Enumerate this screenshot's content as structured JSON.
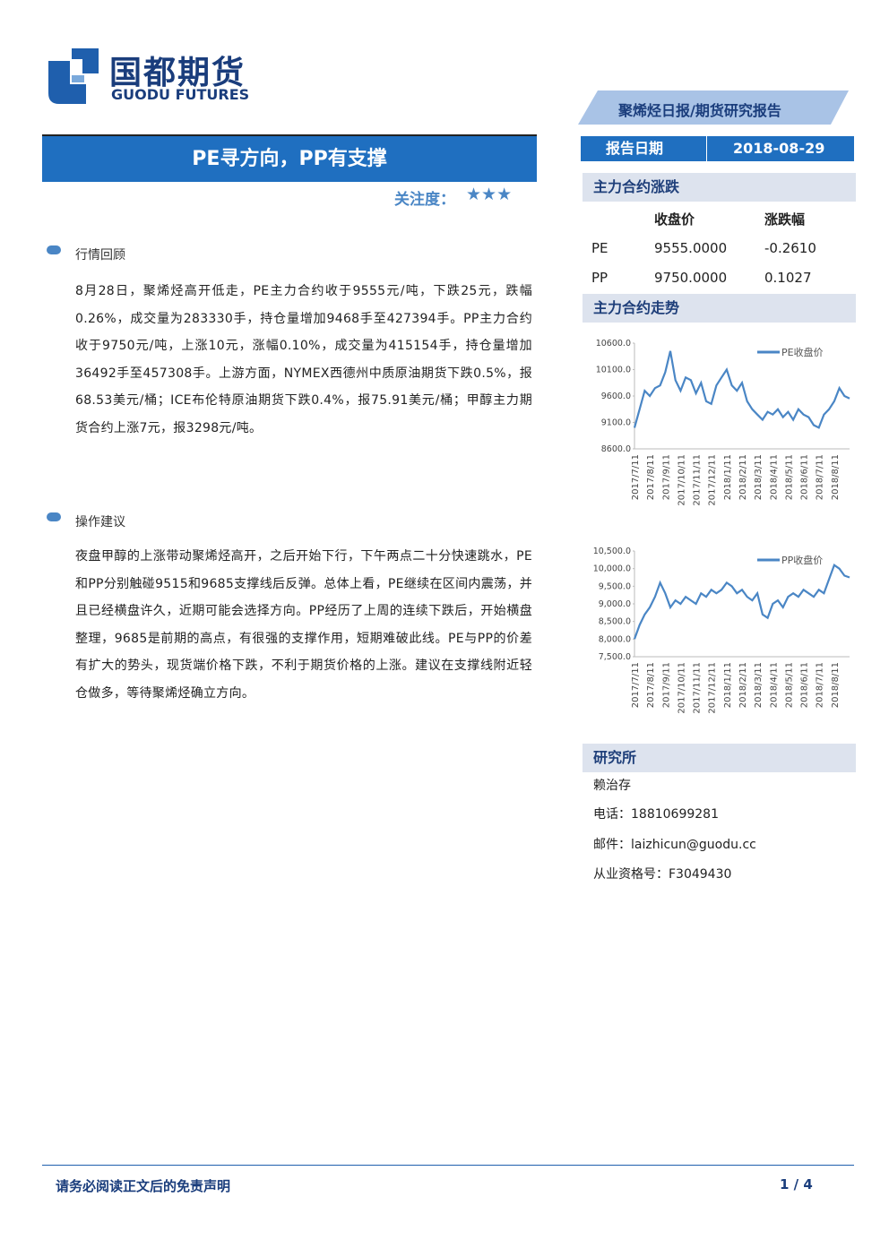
{
  "header": {
    "logo_cn": "国都期货",
    "logo_en": "GUODU FUTURES",
    "report_type": "聚烯烃日报/期货研究报告"
  },
  "title": "PE寻方向，PP有支撑",
  "attention_label": "关注度：",
  "stars": "★★★",
  "sections": [
    {
      "heading": "行情回顾",
      "body": "8月28日，聚烯烃高开低走，PE主力合约收于9555元/吨，下跌25元，跌幅0.26%，成交量为283330手，持仓量增加9468手至427394手。PP主力合约收于9750元/吨，上涨10元，涨幅0.10%，成交量为415154手，持仓量增加36492手至457308手。上游方面，NYMEX西德州中质原油期货下跌0.5%，报68.53美元/桶；ICE布伦特原油期货下跌0.4%，报75.91美元/桶；甲醇主力期货合约上涨7元，报3298元/吨。"
    },
    {
      "heading": "操作建议",
      "body": "夜盘甲醇的上涨带动聚烯烃高开，之后开始下行，下午两点二十分快速跳水，PE和PP分别触碰9515和9685支撑线后反弹。总体上看，PE继续在区间内震荡，并且已经横盘许久，近期可能会选择方向。PP经历了上周的连续下跌后，开始横盘整理，9685是前期的高点，有很强的支撑作用，短期难破此线。PE与PP的价差有扩大的势头，现货端价格下跌，不利于期货价格的上涨。建议在支撑线附近轻仓做多，等待聚烯烃确立方向。"
    }
  ],
  "sidebar": {
    "date_label": "报告日期",
    "date": "2018-08-29",
    "change_title": "主力合约涨跌",
    "change_columns": [
      "收盘价",
      "涨跌幅"
    ],
    "change_rows": [
      [
        "PE",
        "9555.0000",
        "-0.2610"
      ],
      [
        "PP",
        "9750.0000",
        "0.1027"
      ]
    ],
    "trend_title": "主力合约走势"
  },
  "research": {
    "title": "研究所",
    "name": "赖治存",
    "phone": "电话：18810699281",
    "email": "邮件：laizhicun@guodu.cc",
    "license": "从业资格号：F3049430"
  },
  "footer": {
    "disclaimer": "请务必阅读正文后的免责声明",
    "page": "1 / 4"
  },
  "chart_data": [
    {
      "type": "line",
      "categories": [
        "2017/7/11",
        null,
        null,
        "2017/8/11",
        null,
        null,
        "2017/9/11",
        null,
        null,
        "2017/10/11",
        null,
        null,
        "2017/11/11",
        null,
        null,
        "2017/12/11",
        null,
        null,
        "2018/1/11",
        null,
        null,
        "2018/2/11",
        null,
        null,
        "2018/3/11",
        null,
        null,
        "2018/4/11",
        null,
        null,
        "2018/5/11",
        null,
        null,
        "2018/6/11",
        null,
        null,
        "2018/7/11",
        null,
        null,
        "2018/8/11",
        null,
        null,
        null
      ],
      "series": [
        {
          "name": "PE收盘价",
          "color": "#4a86c5",
          "values": [
            9000,
            9350,
            9700,
            9600,
            9750,
            9800,
            10050,
            10450,
            9900,
            9700,
            9950,
            9900,
            9650,
            9850,
            9500,
            9450,
            9800,
            9950,
            10100,
            9800,
            9700,
            9850,
            9500,
            9350,
            9250,
            9150,
            9300,
            9250,
            9350,
            9200,
            9300,
            9150,
            9350,
            9250,
            9200,
            9050,
            9000,
            9250,
            9350,
            9500,
            9750,
            9600,
            9555
          ]
        }
      ],
      "ylim": [
        8600,
        10600
      ],
      "yticks": [
        {
          "value": 8600,
          "label": "8600.0"
        },
        {
          "value": 9100,
          "label": "9100.0"
        },
        {
          "value": 9600,
          "label": "9600.0"
        },
        {
          "value": 10100,
          "label": "10100.0"
        },
        {
          "value": 10600,
          "label": "10600.0"
        }
      ]
    },
    {
      "type": "line",
      "categories": [
        "2017/7/11",
        null,
        null,
        "2017/8/11",
        null,
        null,
        "2017/9/11",
        null,
        null,
        "2017/10/11",
        null,
        null,
        "2017/11/11",
        null,
        null,
        "2017/12/11",
        null,
        null,
        "2018/1/11",
        null,
        null,
        "2018/2/11",
        null,
        null,
        "2018/3/11",
        null,
        null,
        "2018/4/11",
        null,
        null,
        "2018/5/11",
        null,
        null,
        "2018/6/11",
        null,
        null,
        "2018/7/11",
        null,
        null,
        "2018/8/11",
        null,
        null,
        null
      ],
      "series": [
        {
          "name": "PP收盘价",
          "color": "#4a86c5",
          "values": [
            8000,
            8400,
            8700,
            8900,
            9200,
            9600,
            9300,
            8900,
            9100,
            9000,
            9200,
            9100,
            9000,
            9300,
            9200,
            9400,
            9300,
            9400,
            9600,
            9500,
            9300,
            9400,
            9200,
            9100,
            9300,
            8700,
            8600,
            9000,
            9100,
            8900,
            9200,
            9300,
            9200,
            9400,
            9300,
            9200,
            9400,
            9300,
            9700,
            10100,
            10000,
            9800,
            9750
          ]
        }
      ],
      "ylim": [
        7500,
        10500
      ],
      "yticks": [
        {
          "value": 7500,
          "label": "7,500.0"
        },
        {
          "value": 8000,
          "label": "8,000.0"
        },
        {
          "value": 8500,
          "label": "8,500.0"
        },
        {
          "value": 9000,
          "label": "9,000.0"
        },
        {
          "value": 9500,
          "label": "9,500.0"
        },
        {
          "value": 10000,
          "label": "10,000.0"
        },
        {
          "value": 10500,
          "label": "10,500.0"
        }
      ]
    }
  ]
}
